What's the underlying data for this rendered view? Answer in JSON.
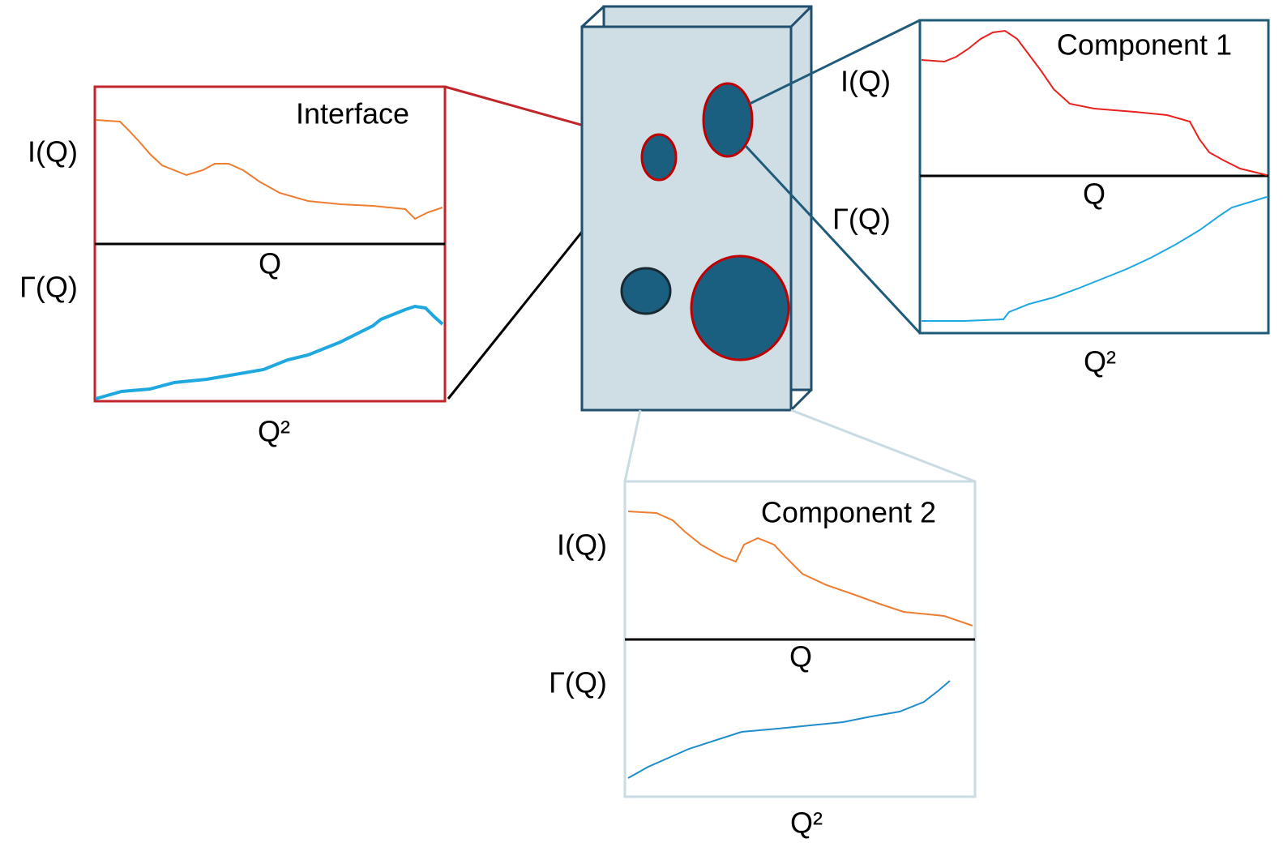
{
  "panels": [
    {
      "title": "Interface",
      "upper_label": "I(Q)",
      "lower_label": "Γ(Q)",
      "divider_label": "Q",
      "bottom_label": "Q²"
    },
    {
      "title": "Component 1",
      "upper_label": "I(Q)",
      "lower_label": "Γ(Q)",
      "divider_label": "Q",
      "bottom_label": "Q²"
    },
    {
      "title": "Component 2",
      "upper_label": "I(Q)",
      "lower_label": "Γ(Q)",
      "divider_label": "Q",
      "bottom_label": "Q²"
    }
  ]
}
